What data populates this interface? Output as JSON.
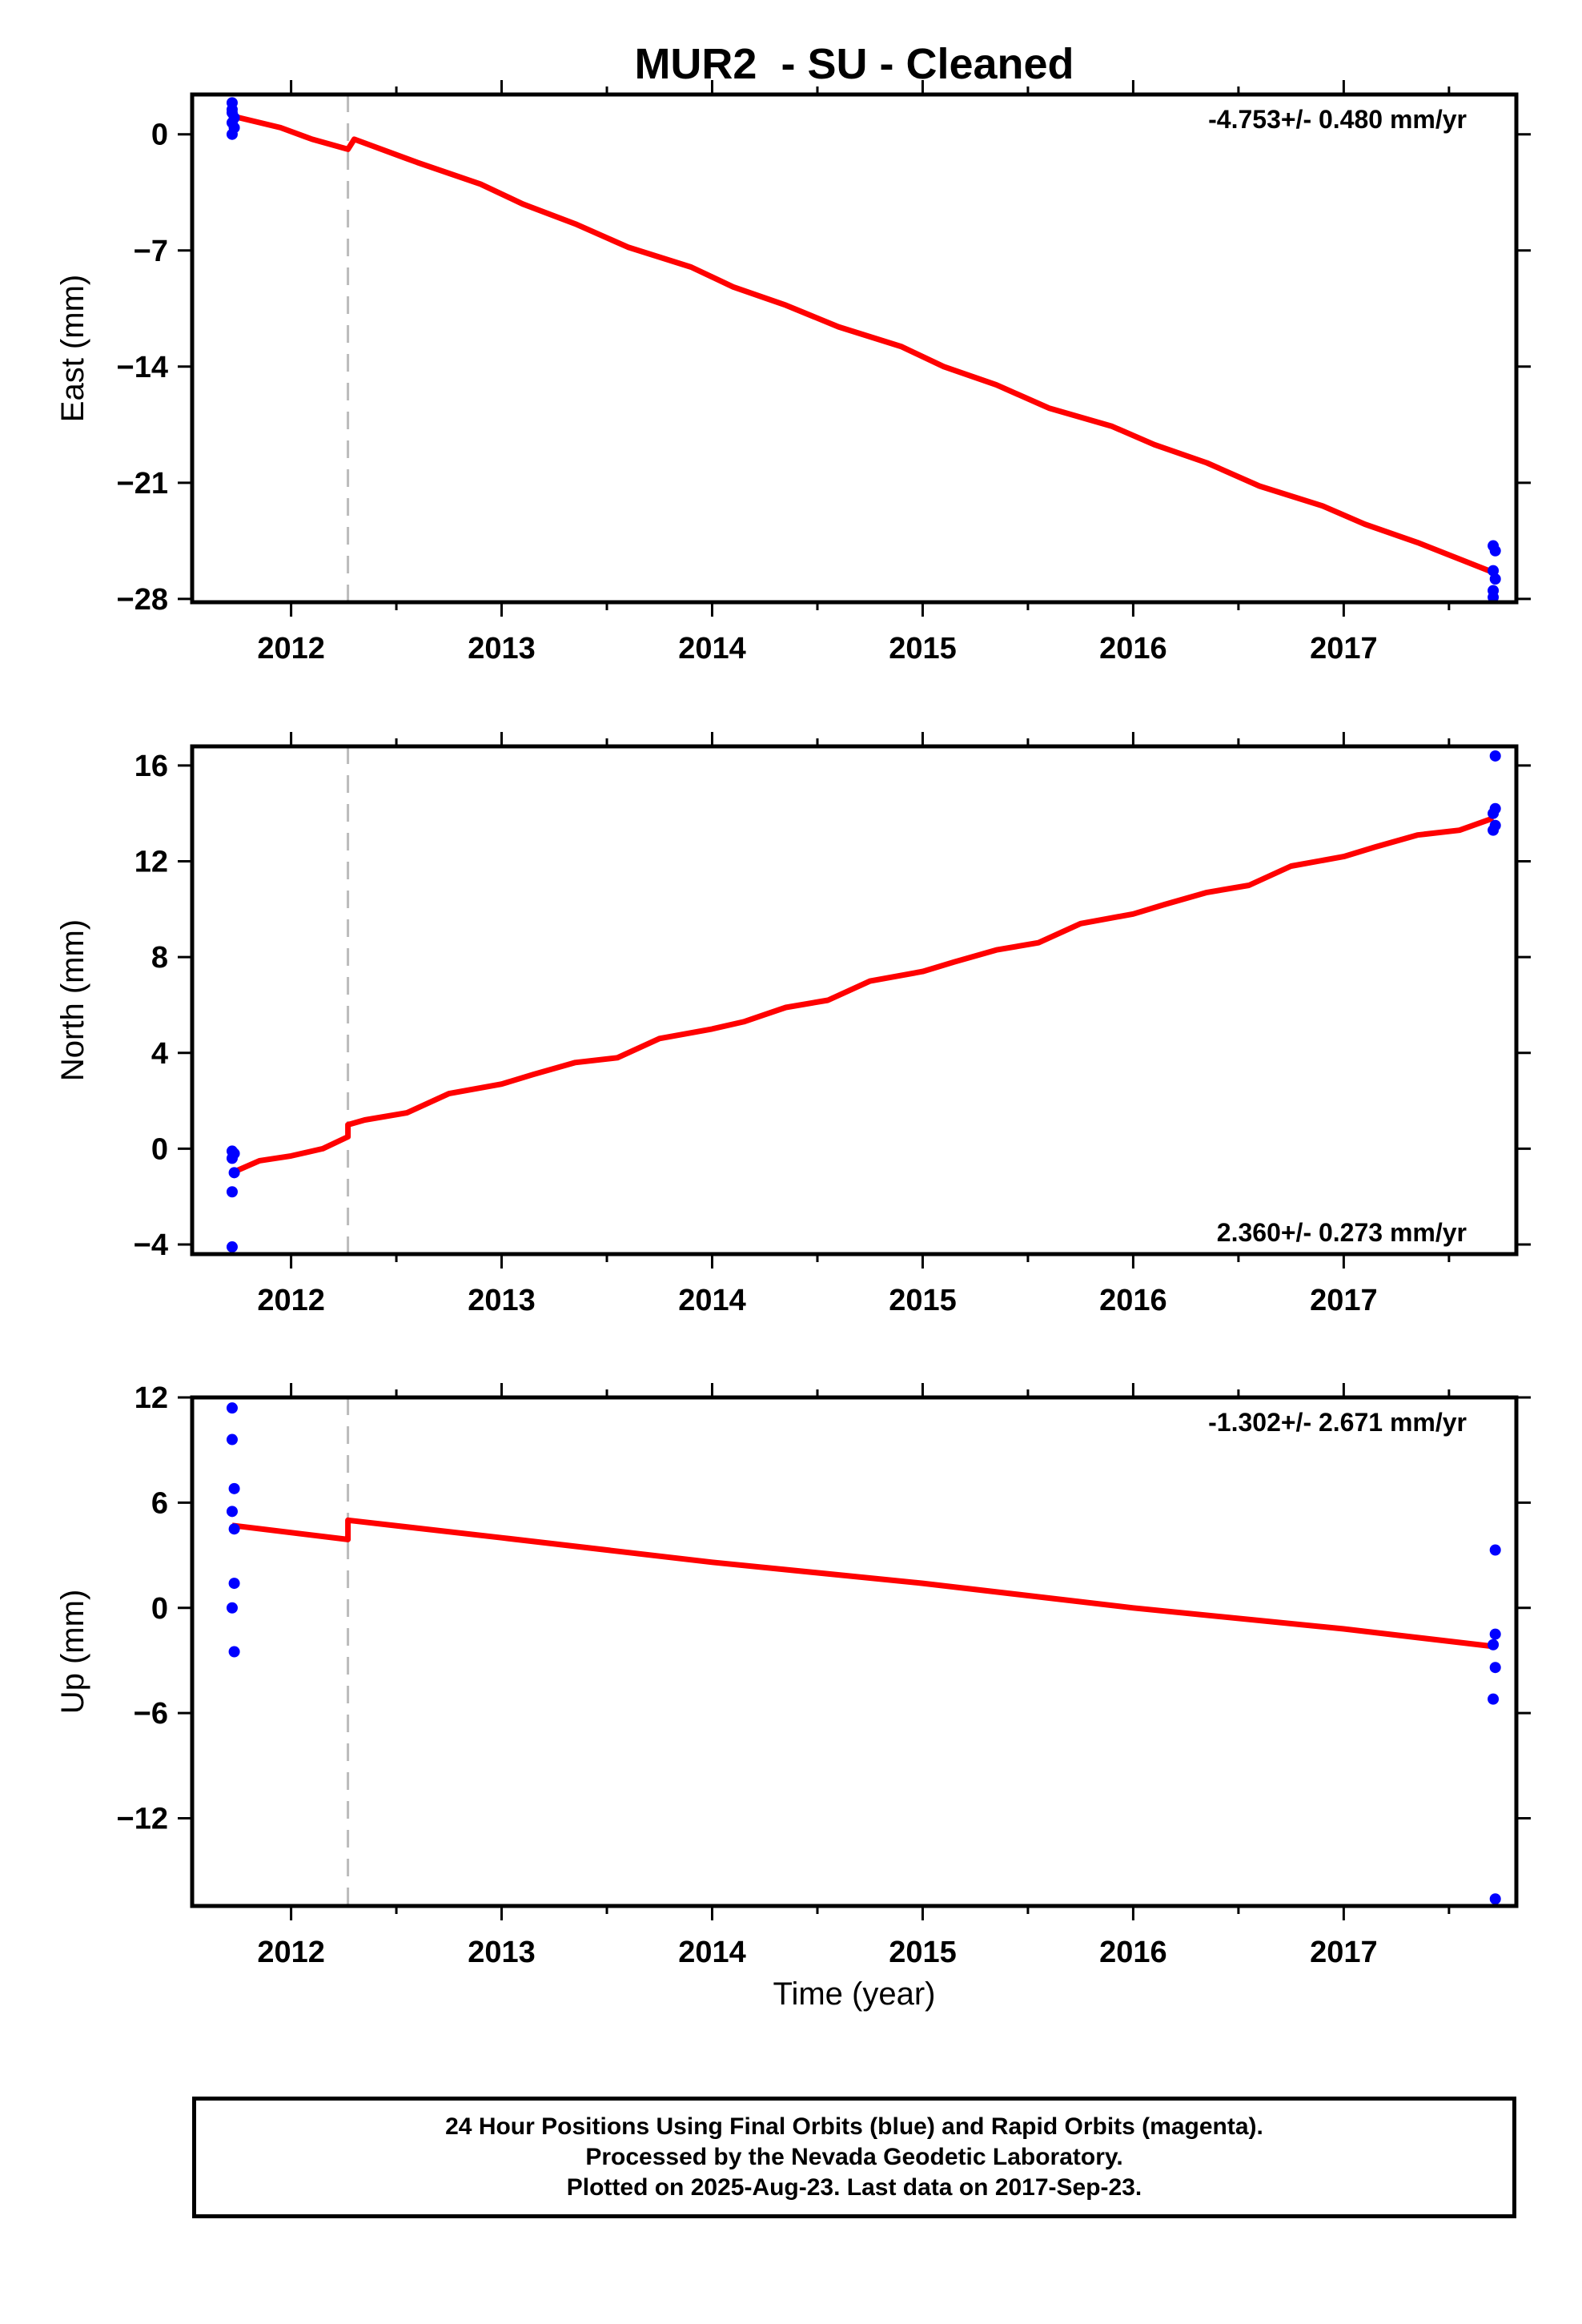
{
  "colors": {
    "model_line": "#ff0000",
    "final_orbit_points": "#0000ff",
    "step_marker": "#bbbbbb",
    "frame": "#000000"
  },
  "chart_data": {
    "type": "scatter",
    "title": "MUR2  - SU - Cleaned",
    "xlabel": "Time (year)",
    "x_ticks": [
      "2012",
      "2013",
      "2014",
      "2015",
      "2016",
      "2017"
    ],
    "xlim": [
      2011.53,
      2017.82
    ],
    "step_marker_x": 2012.27,
    "grid": false,
    "panels": [
      {
        "name": "east",
        "ylabel": "East (mm)",
        "ylim": [
          -28.2,
          2.4
        ],
        "y_ticks": [
          "0",
          "−7",
          "−14",
          "−21",
          "−28"
        ],
        "y_tick_values": [
          0,
          -7,
          -14,
          -21,
          -28
        ],
        "rate_text": "-4.753+/- 0.480 mm/yr",
        "rate_position": "top-right",
        "points": [
          {
            "x": 2011.72,
            "y": 1.9
          },
          {
            "x": 2011.72,
            "y": 1.5
          },
          {
            "x": 2011.72,
            "y": 1.3
          },
          {
            "x": 2011.73,
            "y": 1.0
          },
          {
            "x": 2011.72,
            "y": 0.7
          },
          {
            "x": 2011.73,
            "y": 0.4
          },
          {
            "x": 2011.72,
            "y": 0.0
          },
          {
            "x": 2017.71,
            "y": -24.8
          },
          {
            "x": 2017.72,
            "y": -25.1
          },
          {
            "x": 2017.71,
            "y": -26.3
          },
          {
            "x": 2017.72,
            "y": -26.8
          },
          {
            "x": 2017.71,
            "y": -27.5
          },
          {
            "x": 2017.71,
            "y": -27.9
          }
        ],
        "model": [
          {
            "x": 2011.72,
            "y": 1.1
          },
          {
            "x": 2011.95,
            "y": 0.4
          },
          {
            "x": 2012.1,
            "y": -0.3
          },
          {
            "x": 2012.27,
            "y": -0.9
          },
          {
            "x": 2012.3,
            "y": -0.3
          },
          {
            "x": 2012.6,
            "y": -1.7
          },
          {
            "x": 2012.9,
            "y": -3.0
          },
          {
            "x": 2013.1,
            "y": -4.2
          },
          {
            "x": 2013.35,
            "y": -5.4
          },
          {
            "x": 2013.6,
            "y": -6.8
          },
          {
            "x": 2013.9,
            "y": -8.0
          },
          {
            "x": 2014.1,
            "y": -9.2
          },
          {
            "x": 2014.35,
            "y": -10.3
          },
          {
            "x": 2014.6,
            "y": -11.6
          },
          {
            "x": 2014.9,
            "y": -12.8
          },
          {
            "x": 2015.1,
            "y": -14.0
          },
          {
            "x": 2015.35,
            "y": -15.1
          },
          {
            "x": 2015.6,
            "y": -16.5
          },
          {
            "x": 2015.9,
            "y": -17.6
          },
          {
            "x": 2016.1,
            "y": -18.7
          },
          {
            "x": 2016.35,
            "y": -19.8
          },
          {
            "x": 2016.6,
            "y": -21.2
          },
          {
            "x": 2016.9,
            "y": -22.4
          },
          {
            "x": 2017.1,
            "y": -23.5
          },
          {
            "x": 2017.35,
            "y": -24.6
          },
          {
            "x": 2017.55,
            "y": -25.6
          },
          {
            "x": 2017.71,
            "y": -26.4
          }
        ]
      },
      {
        "name": "north",
        "ylabel": "North (mm)",
        "ylim": [
          -4.4,
          16.8
        ],
        "y_ticks": [
          "16",
          "12",
          "8",
          "4",
          "0",
          "−4"
        ],
        "y_tick_values": [
          16,
          12,
          8,
          4,
          0,
          -4
        ],
        "rate_text": "2.360+/- 0.273 mm/yr",
        "rate_position": "bottom-right",
        "points": [
          {
            "x": 2011.72,
            "y": -0.1
          },
          {
            "x": 2011.73,
            "y": -0.2
          },
          {
            "x": 2011.72,
            "y": -0.4
          },
          {
            "x": 2011.73,
            "y": -1.0
          },
          {
            "x": 2011.72,
            "y": -1.8
          },
          {
            "x": 2011.72,
            "y": -4.1
          },
          {
            "x": 2017.72,
            "y": 16.4
          },
          {
            "x": 2017.72,
            "y": 14.2
          },
          {
            "x": 2017.71,
            "y": 14.0
          },
          {
            "x": 2017.72,
            "y": 13.5
          },
          {
            "x": 2017.71,
            "y": 13.3
          }
        ],
        "model": [
          {
            "x": 2011.72,
            "y": -1.0
          },
          {
            "x": 2011.85,
            "y": -0.5
          },
          {
            "x": 2012.0,
            "y": -0.3
          },
          {
            "x": 2012.15,
            "y": 0.0
          },
          {
            "x": 2012.27,
            "y": 0.5
          },
          {
            "x": 2012.27,
            "y": 1.0
          },
          {
            "x": 2012.35,
            "y": 1.2
          },
          {
            "x": 2012.55,
            "y": 1.5
          },
          {
            "x": 2012.75,
            "y": 2.3
          },
          {
            "x": 2013.0,
            "y": 2.7
          },
          {
            "x": 2013.15,
            "y": 3.1
          },
          {
            "x": 2013.35,
            "y": 3.6
          },
          {
            "x": 2013.55,
            "y": 3.8
          },
          {
            "x": 2013.75,
            "y": 4.6
          },
          {
            "x": 2014.0,
            "y": 5.0
          },
          {
            "x": 2014.15,
            "y": 5.3
          },
          {
            "x": 2014.35,
            "y": 5.9
          },
          {
            "x": 2014.55,
            "y": 6.2
          },
          {
            "x": 2014.75,
            "y": 7.0
          },
          {
            "x": 2015.0,
            "y": 7.4
          },
          {
            "x": 2015.15,
            "y": 7.8
          },
          {
            "x": 2015.35,
            "y": 8.3
          },
          {
            "x": 2015.55,
            "y": 8.6
          },
          {
            "x": 2015.75,
            "y": 9.4
          },
          {
            "x": 2016.0,
            "y": 9.8
          },
          {
            "x": 2016.15,
            "y": 10.2
          },
          {
            "x": 2016.35,
            "y": 10.7
          },
          {
            "x": 2016.55,
            "y": 11.0
          },
          {
            "x": 2016.75,
            "y": 11.8
          },
          {
            "x": 2017.0,
            "y": 12.2
          },
          {
            "x": 2017.15,
            "y": 12.6
          },
          {
            "x": 2017.35,
            "y": 13.1
          },
          {
            "x": 2017.55,
            "y": 13.3
          },
          {
            "x": 2017.71,
            "y": 13.8
          }
        ]
      },
      {
        "name": "up",
        "ylabel": "Up (mm)",
        "ylim": [
          -17.0,
          12.0
        ],
        "y_ticks": [
          "12",
          "6",
          "0",
          "−6",
          "−12"
        ],
        "y_tick_values": [
          12,
          6,
          0,
          -6,
          -12
        ],
        "rate_text": "-1.302+/- 2.671 mm/yr",
        "rate_position": "top-right",
        "points": [
          {
            "x": 2011.72,
            "y": 11.4
          },
          {
            "x": 2011.72,
            "y": 9.6
          },
          {
            "x": 2011.73,
            "y": 6.8
          },
          {
            "x": 2011.72,
            "y": 5.5
          },
          {
            "x": 2011.73,
            "y": 4.5
          },
          {
            "x": 2011.73,
            "y": 1.4
          },
          {
            "x": 2011.72,
            "y": 0.0
          },
          {
            "x": 2011.73,
            "y": -2.5
          },
          {
            "x": 2017.72,
            "y": 3.3
          },
          {
            "x": 2017.72,
            "y": -1.5
          },
          {
            "x": 2017.71,
            "y": -2.1
          },
          {
            "x": 2017.72,
            "y": -3.4
          },
          {
            "x": 2017.71,
            "y": -5.2
          },
          {
            "x": 2017.72,
            "y": -16.6
          }
        ],
        "model": [
          {
            "x": 2011.72,
            "y": 4.7
          },
          {
            "x": 2012.27,
            "y": 3.9
          },
          {
            "x": 2012.27,
            "y": 5.0
          },
          {
            "x": 2013.0,
            "y": 4.0
          },
          {
            "x": 2014.0,
            "y": 2.6
          },
          {
            "x": 2015.0,
            "y": 1.4
          },
          {
            "x": 2016.0,
            "y": 0.0
          },
          {
            "x": 2017.0,
            "y": -1.2
          },
          {
            "x": 2017.71,
            "y": -2.2
          }
        ]
      }
    ]
  },
  "footer": {
    "line1": "24 Hour Positions Using Final Orbits (blue) and Rapid Orbits (magenta).",
    "line2": "Processed by the Nevada Geodetic Laboratory.",
    "line3": "Plotted on 2025-Aug-23. Last data on 2017-Sep-23."
  }
}
